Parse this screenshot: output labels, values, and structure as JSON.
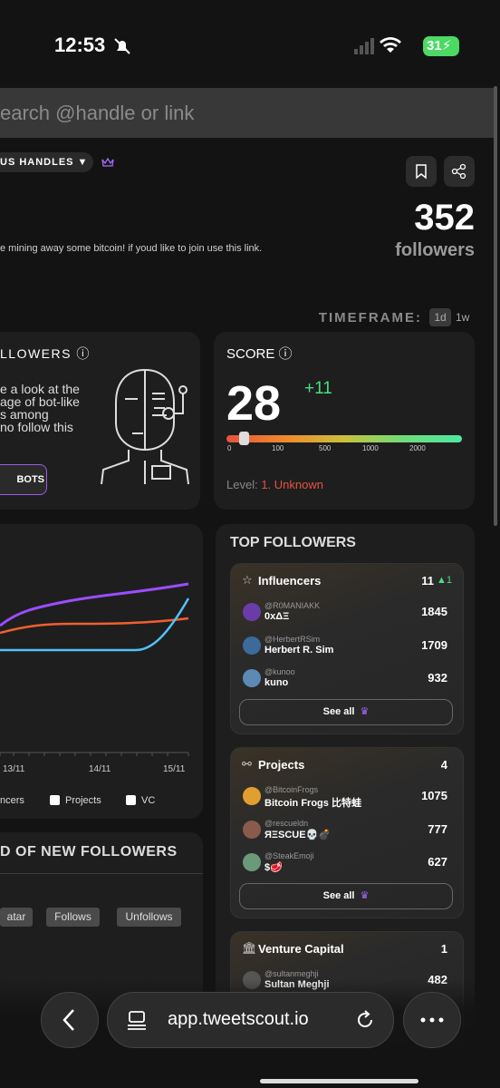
{
  "status_bar": {
    "time": "12:53",
    "battery": 31
  },
  "search": {
    "placeholder": "earch @handle or link"
  },
  "profile": {
    "handles_button": "US HANDLES ▼",
    "bio": "e mining away some bitcoin! if youd like to join use this link.",
    "followers_count": 352,
    "followers_label": "followers"
  },
  "timeframe": {
    "label": "TIMEFRAME:",
    "options": [
      "1d",
      "1w"
    ]
  },
  "bots_card": {
    "title": "LLOWERS",
    "text_lines": [
      "e a look at the",
      "age of bot-like",
      "s among",
      "no follow this"
    ],
    "button": "BOTS"
  },
  "score_card": {
    "title": "SCORE",
    "score": 28,
    "change": "+11",
    "scale": [
      0,
      100,
      500,
      1000,
      2000
    ],
    "level_label": "Level:",
    "level": "1. Unknown"
  },
  "chart_card": {
    "x_labels": [
      "13/11",
      "14/11",
      "15/11"
    ],
    "legend": [
      "ncers",
      "Projects",
      "VC"
    ]
  },
  "new_followers_card": {
    "title": "D OF NEW FOLLOWERS",
    "buttons": [
      "atar",
      "Follows",
      "Unfollows"
    ]
  },
  "top_followers": {
    "title": "TOP FOLLOWERS",
    "groups": [
      {
        "name": "Influencers",
        "count": 11,
        "change": 1,
        "see_all": "See all",
        "entries": [
          {
            "handle": "@R0MANIAKK",
            "name": "0xΔΞ",
            "value": 1845
          },
          {
            "handle": "@HerbertRSim",
            "name": "Herbert R. Sim",
            "value": 1709
          },
          {
            "handle": "@kunoo",
            "name": "kuno",
            "value": 932
          }
        ]
      },
      {
        "name": "Projects",
        "count": 4,
        "see_all": "See all",
        "entries": [
          {
            "handle": "@BitcoinFrogs",
            "name": "Bitcoin Frogs 比特蛙",
            "value": 1075
          },
          {
            "handle": "@rescueldn",
            "name": "ЯΞЅCUE💀💣",
            "value": 777
          },
          {
            "handle": "@SteakEmoji",
            "name": "$🥩",
            "value": 627
          }
        ]
      },
      {
        "name": "Venture Capital",
        "count": 1,
        "entries": [
          {
            "handle": "@sultanmeghji",
            "name": "Sultan Meghji",
            "value": 482
          }
        ]
      }
    ]
  },
  "browser": {
    "url": "app.tweetscout.io"
  }
}
